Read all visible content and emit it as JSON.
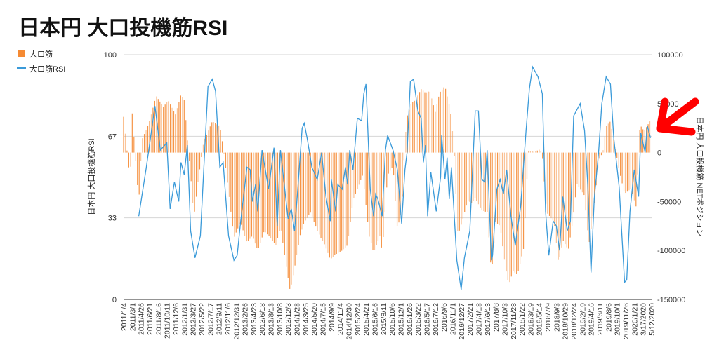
{
  "chart_data": {
    "type": "bar+line",
    "title": "日本円 大口投機筋RSI",
    "legend": {
      "placement": "top-left",
      "entries": [
        "大口筋",
        "大口筋RSI"
      ]
    },
    "ylabel_left": "日本円 大口投機筋RSI",
    "ylabel_right": "日本円 大口投機筋 NETポジション",
    "ylim_left": [
      0,
      100
    ],
    "ylim_right": [
      -150000,
      100000
    ],
    "left_ticks": [
      "0",
      "33",
      "67",
      "100"
    ],
    "left_tick_values": [
      0,
      33.33,
      66.67,
      100
    ],
    "right_ticks": [
      "-150000",
      "-100000",
      "-50000",
      "0",
      "50000",
      "100000"
    ],
    "right_tick_values": [
      -150000,
      -100000,
      -50000,
      0,
      50000,
      100000
    ],
    "grid": true,
    "x_unit": "week index from 2011/1/4 (weekly data)",
    "x_range": [
      0,
      488
    ],
    "x_labels": [
      "2011/1/4",
      "2011/3/1",
      "2011/4/26",
      "2011/6/21",
      "2011/8/16",
      "2011/10/11",
      "2011/12/6",
      "2012/1/31",
      "2012/3/27",
      "2012/5/22",
      "2012/7/17",
      "2012/9/11",
      "2012/11/6",
      "2012/12/31",
      "2013/2/26",
      "2013/4/23",
      "2013/6/18",
      "2013/8/13",
      "2013/10/8",
      "2013/12/3",
      "2014/1/28",
      "2014/3/25",
      "2014/5/20",
      "2014/7/15",
      "2014/9/9",
      "2014/11/4",
      "2014/12/30",
      "2015/2/24",
      "2015/4/21",
      "2015/6/16",
      "2015/8/11",
      "2015/10/6",
      "2015/12/1",
      "2016/1/26",
      "2016/3/22",
      "2016/5/17",
      "2016/7/12",
      "2016/9/6",
      "2016/11/1",
      "2016/12/27",
      "2017/2/21",
      "2017/4/18",
      "2017/6/13",
      "2017/8/8",
      "2017/10/3",
      "2017/11/28",
      "2018/1/22",
      "2018/3/19",
      "2018/5/14",
      "2018/7/9",
      "2018/9/3",
      "2018/10/29",
      "2018/12/24",
      "2019/2/19",
      "2019/4/16",
      "2019/6/11",
      "2019/8/6",
      "2019/10/1",
      "2019/11/26",
      "2020/1/21",
      "3/17/2020",
      "5/12/2020"
    ],
    "series": [
      {
        "name": "大口筋",
        "type": "bar",
        "axis": "right",
        "color": "#f58a33",
        "points": [
          [
            0,
            36500
          ],
          [
            6,
            -28000
          ],
          [
            8,
            40000
          ],
          [
            14,
            -51500
          ],
          [
            17,
            13000
          ],
          [
            24,
            32000
          ],
          [
            30,
            58000
          ],
          [
            37,
            46500
          ],
          [
            41,
            53700
          ],
          [
            48,
            39000
          ],
          [
            53,
            59000
          ],
          [
            56,
            54000
          ],
          [
            59,
            15000
          ],
          [
            63,
            -37000
          ],
          [
            65,
            -66000
          ],
          [
            69,
            -28000
          ],
          [
            74,
            11000
          ],
          [
            82,
            32000
          ],
          [
            89,
            27000
          ],
          [
            92,
            6000
          ],
          [
            98,
            -49000
          ],
          [
            102,
            -87000
          ],
          [
            108,
            -71000
          ],
          [
            114,
            -92000
          ],
          [
            119,
            -85000
          ],
          [
            124,
            -100000
          ],
          [
            130,
            -80000
          ],
          [
            134,
            -85000
          ],
          [
            141,
            -94500
          ],
          [
            145,
            -75000
          ],
          [
            150,
            -114000
          ],
          [
            154,
            -142000
          ],
          [
            158,
            -118000
          ],
          [
            163,
            -85000
          ],
          [
            167,
            -71000
          ],
          [
            173,
            -61000
          ],
          [
            179,
            -80000
          ],
          [
            186,
            -94500
          ],
          [
            191,
            -109000
          ],
          [
            196,
            -104000
          ],
          [
            202,
            -100000
          ],
          [
            207,
            -94500
          ],
          [
            212,
            -49000
          ],
          [
            221,
            -23000
          ],
          [
            227,
            -85000
          ],
          [
            231,
            -102000
          ],
          [
            237,
            -85000
          ],
          [
            239,
            -102000
          ],
          [
            244,
            -23000
          ],
          [
            249,
            -13600
          ],
          [
            253,
            -78000
          ],
          [
            257,
            -59000
          ],
          [
            260,
            11000
          ],
          [
            262,
            36500
          ],
          [
            266,
            51000
          ],
          [
            270,
            53700
          ],
          [
            275,
            65000
          ],
          [
            279,
            61000
          ],
          [
            283,
            63000
          ],
          [
            288,
            41500
          ],
          [
            292,
            61000
          ],
          [
            297,
            68000
          ],
          [
            302,
            43700
          ],
          [
            305,
            11000
          ],
          [
            309,
            -85000
          ],
          [
            314,
            -66000
          ],
          [
            318,
            -49000
          ],
          [
            322,
            -51500
          ],
          [
            325,
            -46500
          ],
          [
            331,
            -59000
          ],
          [
            336,
            -61000
          ],
          [
            340,
            -125000
          ],
          [
            344,
            -71000
          ],
          [
            348,
            -75000
          ],
          [
            353,
            -118000
          ],
          [
            356,
            -135000
          ],
          [
            360,
            -121000
          ],
          [
            364,
            -125000
          ],
          [
            370,
            -96500
          ],
          [
            374,
            2000
          ],
          [
            380,
            700
          ],
          [
            385,
            3500
          ],
          [
            387,
            -3500
          ],
          [
            391,
            -61000
          ],
          [
            398,
            -71000
          ],
          [
            402,
            -114000
          ],
          [
            406,
            -89500
          ],
          [
            411,
            -99500
          ],
          [
            415,
            -71000
          ],
          [
            419,
            -32000
          ],
          [
            426,
            -44000
          ],
          [
            430,
            -94500
          ],
          [
            435,
            -53700
          ],
          [
            439,
            -8600
          ],
          [
            443,
            700
          ],
          [
            446,
            27000
          ],
          [
            450,
            32000
          ],
          [
            454,
            6000
          ],
          [
            458,
            -18000
          ],
          [
            463,
            -42000
          ],
          [
            469,
            -37000
          ],
          [
            474,
            -56500
          ],
          [
            477,
            29000
          ],
          [
            481,
            22000
          ],
          [
            487,
            33000
          ]
        ]
      },
      {
        "name": "大口筋RSI",
        "type": "line",
        "axis": "left",
        "color": "#3a9ad9",
        "points": [
          [
            14,
            34
          ],
          [
            21,
            54
          ],
          [
            29,
            79
          ],
          [
            34,
            61
          ],
          [
            40,
            64
          ],
          [
            43,
            37
          ],
          [
            47,
            48
          ],
          [
            51,
            40
          ],
          [
            53,
            56
          ],
          [
            56,
            51
          ],
          [
            59,
            63
          ],
          [
            62,
            28
          ],
          [
            66,
            17
          ],
          [
            71,
            26
          ],
          [
            78,
            87
          ],
          [
            82,
            90
          ],
          [
            85,
            85
          ],
          [
            89,
            54
          ],
          [
            92,
            56
          ],
          [
            97,
            26
          ],
          [
            102,
            16
          ],
          [
            105,
            18
          ],
          [
            108,
            31
          ],
          [
            114,
            54
          ],
          [
            117,
            53
          ],
          [
            119,
            40
          ],
          [
            122,
            47
          ],
          [
            124,
            36
          ],
          [
            128,
            61
          ],
          [
            134,
            45
          ],
          [
            139,
            62
          ],
          [
            142,
            30
          ],
          [
            145,
            61
          ],
          [
            152,
            33
          ],
          [
            155,
            37
          ],
          [
            158,
            28
          ],
          [
            161,
            45
          ],
          [
            165,
            70
          ],
          [
            167,
            72
          ],
          [
            170,
            65
          ],
          [
            174,
            54
          ],
          [
            179,
            49
          ],
          [
            183,
            60
          ],
          [
            187,
            42
          ],
          [
            191,
            32
          ],
          [
            192,
            49
          ],
          [
            196,
            36
          ],
          [
            198,
            47
          ],
          [
            202,
            45
          ],
          [
            205,
            54
          ],
          [
            207,
            47
          ],
          [
            209,
            61
          ],
          [
            212,
            53
          ],
          [
            216,
            74
          ],
          [
            220,
            73
          ],
          [
            222,
            84
          ],
          [
            224,
            88
          ],
          [
            226,
            66
          ],
          [
            228,
            45
          ],
          [
            231,
            34
          ],
          [
            233,
            43
          ],
          [
            235,
            41
          ],
          [
            239,
            34
          ],
          [
            242,
            61
          ],
          [
            244,
            67
          ],
          [
            249,
            61
          ],
          [
            253,
            53
          ],
          [
            257,
            31
          ],
          [
            260,
            53
          ],
          [
            262,
            60
          ],
          [
            265,
            89
          ],
          [
            268,
            90
          ],
          [
            272,
            77
          ],
          [
            275,
            74
          ],
          [
            277,
            56
          ],
          [
            279,
            63
          ],
          [
            281,
            34
          ],
          [
            284,
            52
          ],
          [
            289,
            36
          ],
          [
            293,
            50
          ],
          [
            294,
            67
          ],
          [
            297,
            49
          ],
          [
            299,
            58
          ],
          [
            301,
            41
          ],
          [
            303,
            54
          ],
          [
            308,
            16
          ],
          [
            312,
            4
          ],
          [
            315,
            17
          ],
          [
            320,
            28
          ],
          [
            325,
            77
          ],
          [
            328,
            77
          ],
          [
            331,
            49
          ],
          [
            334,
            48
          ],
          [
            336,
            61
          ],
          [
            340,
            16
          ],
          [
            341,
            18
          ],
          [
            345,
            45
          ],
          [
            348,
            49
          ],
          [
            351,
            43
          ],
          [
            354,
            53
          ],
          [
            358,
            34
          ],
          [
            362,
            22
          ],
          [
            367,
            38
          ],
          [
            372,
            69
          ],
          [
            375,
            86
          ],
          [
            378,
            95
          ],
          [
            383,
            91
          ],
          [
            387,
            84
          ],
          [
            390,
            36
          ],
          [
            393,
            18
          ],
          [
            397,
            32
          ],
          [
            400,
            30
          ],
          [
            403,
            20
          ],
          [
            406,
            42
          ],
          [
            410,
            28
          ],
          [
            413,
            32
          ],
          [
            416,
            75
          ],
          [
            422,
            80
          ],
          [
            426,
            69
          ],
          [
            429,
            47
          ],
          [
            432,
            11
          ],
          [
            435,
            41
          ],
          [
            439,
            60
          ],
          [
            442,
            80
          ],
          [
            446,
            91
          ],
          [
            450,
            88
          ],
          [
            453,
            66
          ],
          [
            458,
            46
          ],
          [
            463,
            7
          ],
          [
            465,
            8
          ],
          [
            468,
            36
          ],
          [
            472,
            53
          ],
          [
            476,
            42
          ],
          [
            478,
            68
          ],
          [
            482,
            60
          ],
          [
            484,
            71
          ],
          [
            487,
            66
          ]
        ]
      }
    ],
    "annotation": {
      "type": "arrow",
      "color": "#ff0000",
      "points_to": "latest values"
    }
  }
}
